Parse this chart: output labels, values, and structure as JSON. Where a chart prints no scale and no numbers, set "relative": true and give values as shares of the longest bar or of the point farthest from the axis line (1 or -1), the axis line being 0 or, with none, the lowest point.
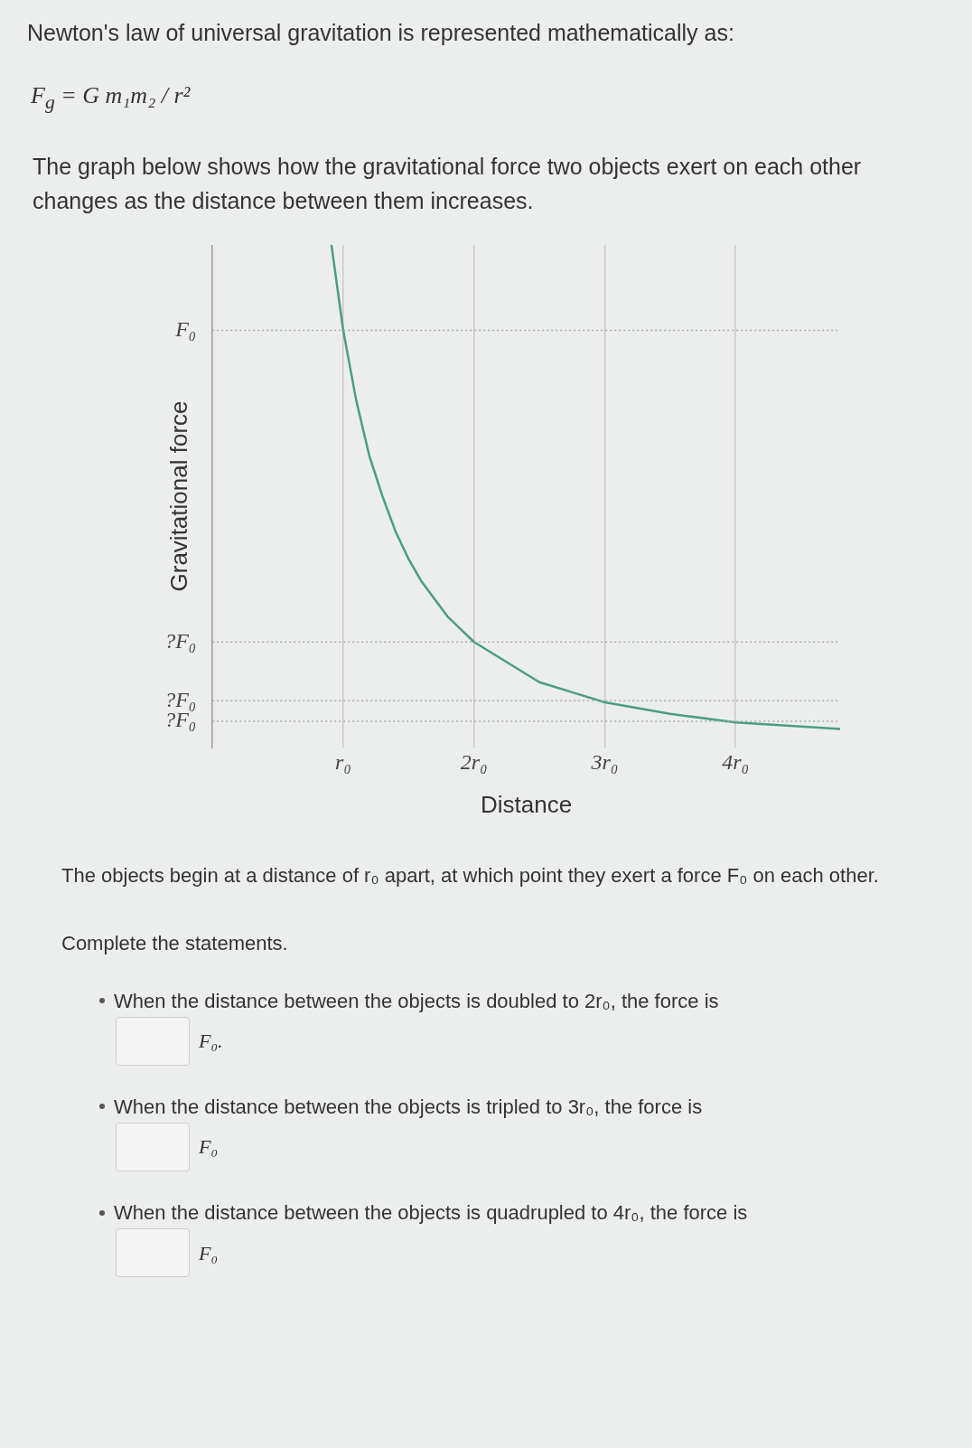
{
  "chart_data": {
    "type": "line",
    "title": "Newton's law of universal gravitation is represented mathematically as:",
    "subtitle": "The graph below shows how the gravitational force two objects exert on each other changes as the distance between them increases.",
    "xlabel": "Distance",
    "ylabel": "Gravitational force",
    "relative": true,
    "x": [
      0.91,
      1,
      1.1,
      1.2,
      1.3,
      1.4,
      1.5,
      1.6,
      1.8,
      2,
      2.25,
      2.5,
      2.75,
      3,
      3.5,
      4,
      4.5,
      4.8
    ],
    "series": [
      {
        "color": "#4a9e7e",
        "values": [
          1,
          0.83,
          0.69,
          0.58,
          0.5,
          0.43,
          0.375,
          0.33,
          0.26,
          0.21,
          0.17,
          0.13,
          0.11,
          0.09,
          0.067,
          0.05,
          0.042,
          0.037
        ]
      }
    ],
    "xlim": [
      0,
      4.8
    ],
    "xticks": [
      {
        "value": 1,
        "label": "r₀"
      },
      {
        "value": 2,
        "label": "2r₀"
      },
      {
        "value": 3,
        "label": "3r₀"
      },
      {
        "value": 4,
        "label": "4r₀"
      }
    ],
    "ref_lines": [
      {
        "axis": "y",
        "value": 0.83,
        "label": "F₀",
        "line_style": "dotted"
      },
      {
        "axis": "y",
        "value": 0.21,
        "label": "?F₀",
        "line_style": "dotted"
      },
      {
        "axis": "y",
        "value": 0.093,
        "label": "?F₀",
        "line_style": "dotted"
      },
      {
        "axis": "y",
        "value": 0.052,
        "label": "?F₀",
        "line_style": "dotted"
      }
    ],
    "grid": "x",
    "marker": "none",
    "line_style": "solid",
    "annotations": [
      "F$_{g}$ = G m₁m₂ / r²",
      "The objects begin at a distance of r₀ apart, at which point they exert a force F₀ on each other.",
      "Complete the statements.",
      "When the distance between the objects is doubled to 2r₀, the force is",
      "F₀.",
      "When the distance between the objects is tripled to 3r₀, the force is",
      "F₀",
      "When the distance between the objects is quadrupled to 4r₀, the force is",
      "F₀"
    ]
  }
}
